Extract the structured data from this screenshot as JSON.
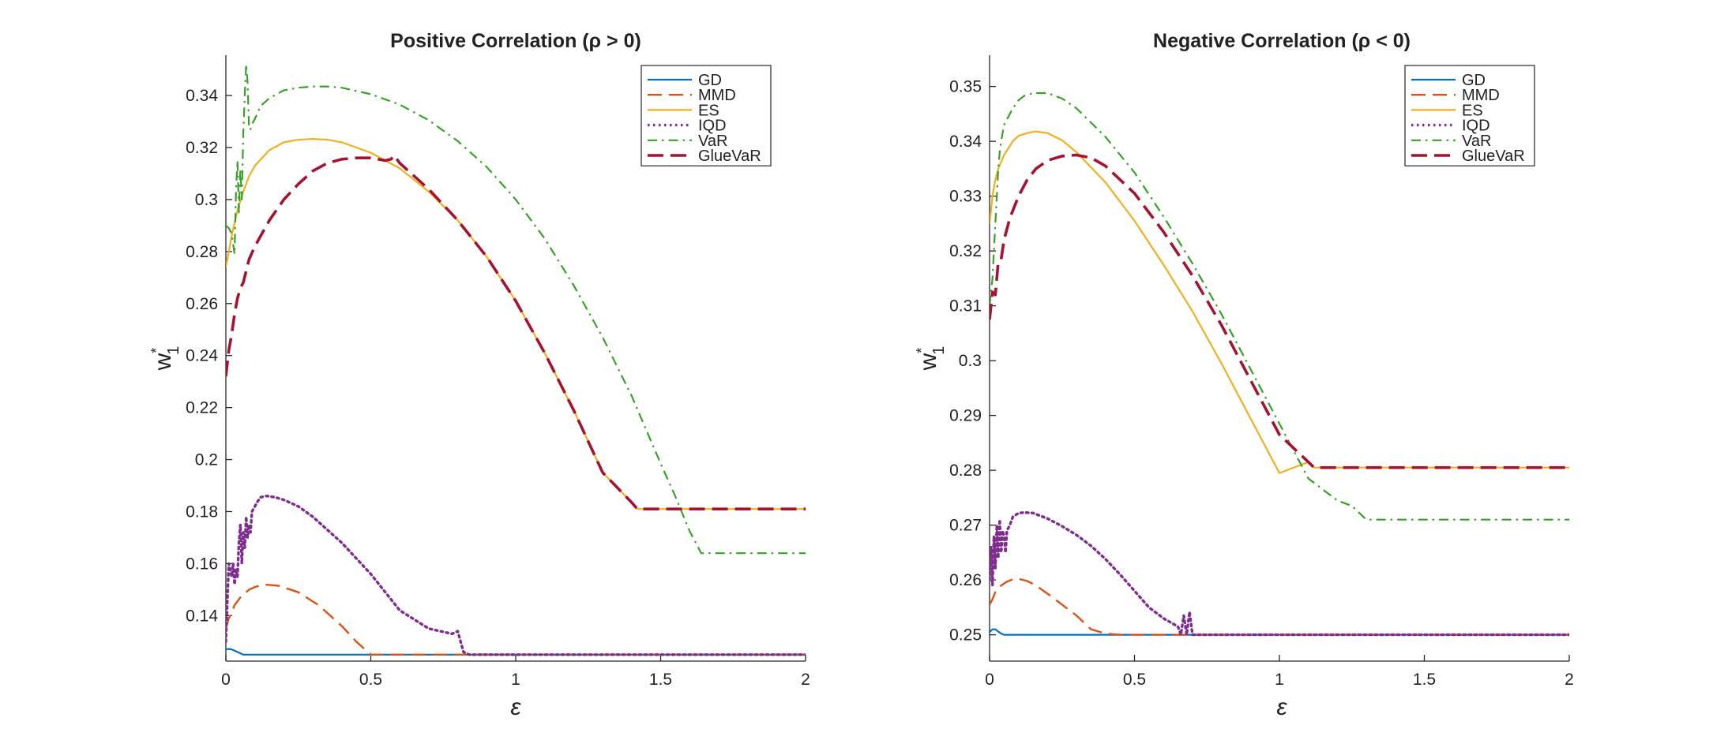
{
  "colors": {
    "GD": "#0072BD",
    "MMD": "#D95319",
    "ES": "#EDB120",
    "IQD": "#7E2F8E",
    "VaR": "#3AA02A",
    "GlueVaR": "#A2142F"
  },
  "legend": [
    "GD",
    "MMD",
    "ES",
    "IQD",
    "VaR",
    "GlueVaR"
  ],
  "chart_data": [
    {
      "type": "line",
      "title": "Positive  Correlation  (ρ > 0)",
      "xlabel": "ε",
      "ylabel_main": "w",
      "ylabel_sup": "*",
      "ylabel_sub": "1",
      "xlim": [
        0,
        2
      ],
      "ylim": [
        0.1225,
        0.3555
      ],
      "xticks": [
        0,
        0.5,
        1,
        1.5,
        2
      ],
      "xtick_labels": [
        "0",
        "0.5",
        "1",
        "1.5",
        "2"
      ],
      "yticks": [
        0.14,
        0.16,
        0.18,
        0.2,
        0.22,
        0.24,
        0.26,
        0.28,
        0.3,
        0.32,
        0.34
      ],
      "ytick_labels": [
        "0.14",
        "0.16",
        "0.18",
        "0.2",
        "0.22",
        "0.24",
        "0.26",
        "0.28",
        "0.3",
        "0.32",
        "0.34"
      ],
      "legend_position": "top-right",
      "series": [
        {
          "name": "GD",
          "dash": "solid",
          "x": [
            0,
            0.01,
            0.02,
            0.03,
            0.04,
            0.05,
            0.06,
            0.1,
            0.5,
            1,
            1.5,
            2
          ],
          "y": [
            0.127,
            0.1272,
            0.127,
            0.1265,
            0.126,
            0.1255,
            0.125,
            0.125,
            0.125,
            0.125,
            0.125,
            0.125
          ]
        },
        {
          "name": "MMD",
          "dash": "dashed",
          "x": [
            0,
            0.01,
            0.02,
            0.03,
            0.05,
            0.08,
            0.1,
            0.13,
            0.18,
            0.25,
            0.32,
            0.4,
            0.45,
            0.5,
            0.6,
            0.8,
            1,
            1.5,
            2
          ],
          "y": [
            0.135,
            0.139,
            0.141,
            0.144,
            0.147,
            0.15,
            0.151,
            0.152,
            0.1515,
            0.149,
            0.144,
            0.136,
            0.13,
            0.125,
            0.125,
            0.125,
            0.125,
            0.125,
            0.125
          ]
        },
        {
          "name": "ES",
          "dash": "solid",
          "x": [
            0,
            0.01,
            0.02,
            0.04,
            0.06,
            0.08,
            0.1,
            0.15,
            0.2,
            0.25,
            0.3,
            0.35,
            0.4,
            0.5,
            0.6,
            0.7,
            0.8,
            0.9,
            1,
            1.1,
            1.2,
            1.3,
            1.4,
            1.42,
            1.5,
            1.6,
            1.8,
            2
          ],
          "y": [
            0.274,
            0.28,
            0.286,
            0.296,
            0.303,
            0.309,
            0.313,
            0.319,
            0.322,
            0.323,
            0.3233,
            0.323,
            0.322,
            0.318,
            0.312,
            0.303,
            0.292,
            0.278,
            0.261,
            0.241,
            0.219,
            0.195,
            0.1835,
            0.181,
            0.181,
            0.181,
            0.181,
            0.181
          ]
        },
        {
          "name": "IQD",
          "dash": "dotted",
          "x": [
            0,
            0.005,
            0.01,
            0.02,
            0.025,
            0.03,
            0.035,
            0.04,
            0.045,
            0.05,
            0.055,
            0.06,
            0.065,
            0.07,
            0.075,
            0.08,
            0.085,
            0.09,
            0.1,
            0.11,
            0.12,
            0.14,
            0.17,
            0.2,
            0.25,
            0.3,
            0.4,
            0.5,
            0.6,
            0.7,
            0.78,
            0.8,
            0.82,
            0.84,
            0.86,
            0.9,
            1,
            1.5,
            2
          ],
          "y": [
            0.13,
            0.145,
            0.16,
            0.155,
            0.16,
            0.152,
            0.158,
            0.155,
            0.168,
            0.175,
            0.16,
            0.172,
            0.166,
            0.178,
            0.17,
            0.175,
            0.172,
            0.18,
            0.182,
            0.184,
            0.1855,
            0.186,
            0.1855,
            0.1845,
            0.182,
            0.178,
            0.168,
            0.156,
            0.142,
            0.135,
            0.133,
            0.134,
            0.126,
            0.125,
            0.125,
            0.125,
            0.125,
            0.125,
            0.125
          ]
        },
        {
          "name": "VaR",
          "dash": "dashdot",
          "x": [
            0,
            0.01,
            0.02,
            0.03,
            0.035,
            0.04,
            0.045,
            0.05,
            0.055,
            0.06,
            0.065,
            0.07,
            0.075,
            0.08,
            0.085,
            0.09,
            0.1,
            0.12,
            0.15,
            0.2,
            0.25,
            0.3,
            0.35,
            0.4,
            0.5,
            0.6,
            0.7,
            0.8,
            0.9,
            1,
            1.1,
            1.2,
            1.3,
            1.4,
            1.5,
            1.55,
            1.6,
            1.64,
            1.7,
            1.8,
            2
          ],
          "y": [
            0.29,
            0.289,
            0.287,
            0.279,
            0.303,
            0.315,
            0.295,
            0.312,
            0.3,
            0.325,
            0.34,
            0.352,
            0.345,
            0.327,
            0.327,
            0.329,
            0.331,
            0.336,
            0.339,
            0.342,
            0.343,
            0.3435,
            0.3435,
            0.343,
            0.3405,
            0.3365,
            0.3305,
            0.3225,
            0.3125,
            0.3,
            0.285,
            0.267,
            0.247,
            0.2245,
            0.1985,
            0.186,
            0.1725,
            0.164,
            0.164,
            0.164,
            0.164
          ]
        },
        {
          "name": "GlueVaR",
          "dash": "longdash",
          "x": [
            0,
            0.01,
            0.02,
            0.03,
            0.04,
            0.05,
            0.06,
            0.08,
            0.1,
            0.15,
            0.2,
            0.25,
            0.3,
            0.35,
            0.4,
            0.45,
            0.5,
            0.55,
            0.57,
            0.58,
            0.6,
            0.7,
            0.8,
            0.9,
            1,
            1.1,
            1.2,
            1.3,
            1.4,
            1.42,
            1.5,
            1.6,
            1.8,
            2
          ],
          "y": [
            0.232,
            0.242,
            0.248,
            0.256,
            0.262,
            0.266,
            0.268,
            0.277,
            0.282,
            0.292,
            0.3,
            0.306,
            0.311,
            0.314,
            0.3155,
            0.316,
            0.316,
            0.315,
            0.3155,
            0.317,
            0.314,
            0.304,
            0.292,
            0.278,
            0.261,
            0.241,
            0.219,
            0.195,
            0.1835,
            0.181,
            0.181,
            0.181,
            0.181,
            0.181
          ]
        }
      ]
    },
    {
      "type": "line",
      "title": "Negative  Correlation  (ρ < 0)",
      "xlabel": "ε",
      "ylabel_main": "w",
      "ylabel_sup": "*",
      "ylabel_sub": "1",
      "xlim": [
        0,
        2
      ],
      "ylim": [
        0.2452,
        0.3557
      ],
      "xticks": [
        0,
        0.5,
        1,
        1.5,
        2
      ],
      "xtick_labels": [
        "0",
        "0.5",
        "1",
        "1.5",
        "2"
      ],
      "yticks": [
        0.25,
        0.26,
        0.27,
        0.28,
        0.29,
        0.3,
        0.31,
        0.32,
        0.33,
        0.34,
        0.35
      ],
      "ytick_labels": [
        "0.25",
        "0.26",
        "0.27",
        "0.28",
        "0.29",
        "0.3",
        "0.31",
        "0.32",
        "0.33",
        "0.34",
        "0.35"
      ],
      "legend_position": "top-right",
      "series": [
        {
          "name": "GD",
          "dash": "solid",
          "x": [
            0,
            0.01,
            0.02,
            0.03,
            0.04,
            0.05,
            0.1,
            0.5,
            1,
            1.5,
            2
          ],
          "y": [
            0.2505,
            0.251,
            0.251,
            0.2506,
            0.2502,
            0.25,
            0.25,
            0.25,
            0.25,
            0.25,
            0.25
          ]
        },
        {
          "name": "MMD",
          "dash": "dashed",
          "x": [
            0,
            0.01,
            0.02,
            0.04,
            0.06,
            0.08,
            0.1,
            0.13,
            0.16,
            0.2,
            0.25,
            0.3,
            0.35,
            0.4,
            0.45,
            0.5,
            1,
            1.5,
            2
          ],
          "y": [
            0.2555,
            0.2565,
            0.2578,
            0.259,
            0.2597,
            0.2601,
            0.2602,
            0.2598,
            0.259,
            0.2575,
            0.2555,
            0.2535,
            0.251,
            0.2502,
            0.25,
            0.25,
            0.25,
            0.25,
            0.25
          ]
        },
        {
          "name": "ES",
          "dash": "solid",
          "x": [
            0,
            0.01,
            0.02,
            0.03,
            0.05,
            0.08,
            0.1,
            0.13,
            0.16,
            0.2,
            0.25,
            0.3,
            0.4,
            0.5,
            0.6,
            0.7,
            0.8,
            0.9,
            1,
            1.1,
            1.12,
            1.2,
            1.4,
            1.6,
            1.8,
            2
          ],
          "y": [
            0.325,
            0.33,
            0.333,
            0.335,
            0.3375,
            0.34,
            0.341,
            0.3415,
            0.3418,
            0.3415,
            0.3402,
            0.338,
            0.3325,
            0.3255,
            0.3175,
            0.309,
            0.2995,
            0.2895,
            0.2795,
            0.2815,
            0.2805,
            0.2805,
            0.2805,
            0.2805,
            0.2805,
            0.2805
          ]
        },
        {
          "name": "IQD",
          "dash": "dotted",
          "x": [
            0,
            0.005,
            0.01,
            0.015,
            0.02,
            0.025,
            0.03,
            0.035,
            0.04,
            0.045,
            0.05,
            0.055,
            0.06,
            0.07,
            0.08,
            0.1,
            0.12,
            0.15,
            0.2,
            0.25,
            0.3,
            0.35,
            0.4,
            0.45,
            0.5,
            0.55,
            0.6,
            0.65,
            0.66,
            0.67,
            0.68,
            0.69,
            0.7,
            0.8,
            1,
            1.5,
            2
          ],
          "y": [
            0.26,
            0.266,
            0.259,
            0.268,
            0.262,
            0.27,
            0.264,
            0.271,
            0.265,
            0.269,
            0.268,
            0.265,
            0.269,
            0.27,
            0.2715,
            0.2722,
            0.2723,
            0.2722,
            0.2712,
            0.2698,
            0.2682,
            0.2662,
            0.2638,
            0.261,
            0.258,
            0.255,
            0.253,
            0.2515,
            0.25,
            0.2535,
            0.25,
            0.2542,
            0.25,
            0.25,
            0.25,
            0.25,
            0.25
          ]
        },
        {
          "name": "VaR",
          "dash": "dashdot",
          "x": [
            0,
            0.01,
            0.015,
            0.02,
            0.025,
            0.03,
            0.035,
            0.04,
            0.05,
            0.06,
            0.08,
            0.1,
            0.12,
            0.15,
            0.2,
            0.25,
            0.3,
            0.4,
            0.5,
            0.6,
            0.7,
            0.8,
            0.9,
            1,
            1.1,
            1.2,
            1.25,
            1.3,
            1.35,
            1.5,
            2
          ],
          "y": [
            0.31,
            0.315,
            0.32,
            0.325,
            0.33,
            0.335,
            0.338,
            0.34,
            0.343,
            0.344,
            0.346,
            0.3475,
            0.3483,
            0.3488,
            0.3488,
            0.3478,
            0.346,
            0.3408,
            0.3343,
            0.3263,
            0.3177,
            0.3085,
            0.2985,
            0.2885,
            0.2785,
            0.2745,
            0.2735,
            0.271,
            0.271,
            0.271,
            0.271
          ]
        },
        {
          "name": "GlueVaR",
          "dash": "longdash",
          "x": [
            0,
            0.01,
            0.02,
            0.03,
            0.04,
            0.05,
            0.07,
            0.1,
            0.13,
            0.16,
            0.2,
            0.25,
            0.3,
            0.35,
            0.4,
            0.5,
            0.6,
            0.7,
            0.8,
            0.9,
            1,
            1.1,
            1.12,
            1.2,
            1.4,
            1.6,
            1.8,
            2
          ],
          "y": [
            0.3075,
            0.3125,
            0.312,
            0.318,
            0.3185,
            0.322,
            0.326,
            0.33,
            0.333,
            0.335,
            0.3365,
            0.3373,
            0.3375,
            0.337,
            0.3355,
            0.3305,
            0.3235,
            0.3155,
            0.3065,
            0.2965,
            0.2865,
            0.2815,
            0.2805,
            0.2805,
            0.2805,
            0.2805,
            0.2805,
            0.2805
          ]
        }
      ]
    }
  ]
}
